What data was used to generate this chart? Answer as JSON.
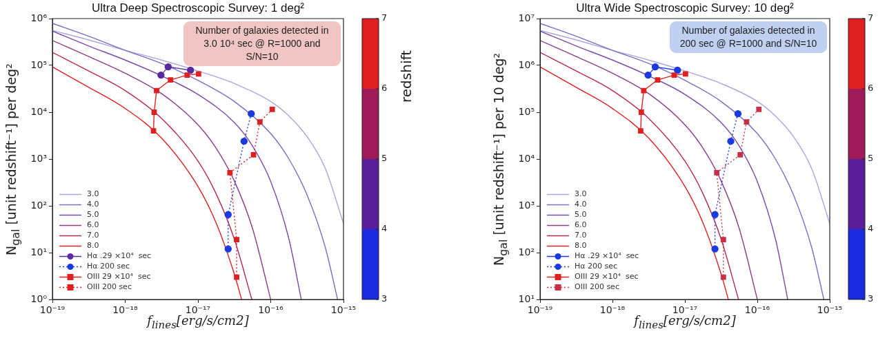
{
  "chart_data": [
    {
      "type": "line",
      "title": "Ultra Deep Spectroscopic Survey: 1 deg²",
      "xlabel": "f$_{lines}$[erg/s/cm2]",
      "ylabel": "N$_{gal}$ [unit redshift⁻¹] per deg²",
      "clabel": "redshift",
      "log": "xy",
      "legend": "bottom left",
      "xlim": [
        1e-19,
        1e-15
      ],
      "ylim": [
        1,
        1000000
      ],
      "xticks": [
        {
          "value": 1e-19,
          "label": "10⁻¹⁹"
        },
        {
          "value": 1e-18,
          "label": "10⁻¹⁸"
        },
        {
          "value": 1e-17,
          "label": "10⁻¹⁷"
        },
        {
          "value": 1e-16,
          "label": "10⁻¹⁶"
        },
        {
          "value": 1e-15,
          "label": "10⁻¹⁵"
        }
      ],
      "yticks": [
        {
          "value": 1,
          "label": "10⁰"
        },
        {
          "value": 10,
          "label": "10¹"
        },
        {
          "value": 100,
          "label": "10²"
        },
        {
          "value": 1000,
          "label": "10³"
        },
        {
          "value": 10000,
          "label": "10⁴"
        },
        {
          "value": 100000,
          "label": "10⁵"
        },
        {
          "value": 1000000,
          "label": "10⁶"
        }
      ],
      "clim": [
        3,
        7
      ],
      "cticks": [
        3,
        4,
        5,
        6,
        7
      ],
      "annotations": [
        "Number of galaxies detected in 3.0 10⁴ sec @ R=1000 and S/N=10"
      ],
      "series": [
        {
          "name": "3.0",
          "color": "#a9a6e0",
          "marker": "none",
          "line_style": "solid",
          "x": [
            1e-19,
            3.16e-19,
            1e-18,
            3.16e-18,
            1e-17,
            3.16e-17,
            1e-16,
            1.78e-16,
            3.16e-16,
            5.62e-16,
            1e-15
          ],
          "values": [
            560000,
            350000,
            210000,
            130000,
            76000,
            41000,
            17000,
            8300,
            3000,
            630,
            42
          ]
        },
        {
          "name": "4.0",
          "color": "#7a6cc8",
          "marker": "none",
          "line_style": "solid",
          "x": [
            1e-19,
            3.16e-19,
            1e-18,
            3.16e-18,
            1e-17,
            3.16e-17,
            1e-16,
            1.78e-16,
            3.16e-16,
            5.62e-16,
            8.3e-16
          ],
          "values": [
            790000,
            420000,
            210000,
            110000,
            48000,
            17000,
            3500,
            1000,
            170,
            13,
            1
          ]
        },
        {
          "name": "5.0",
          "color": "#7b4aa8",
          "marker": "none",
          "line_style": "solid",
          "x": [
            1e-19,
            3.16e-19,
            1e-18,
            3.16e-18,
            1e-17,
            3.16e-17,
            5.62e-17,
            1e-16,
            1.78e-16,
            2.63e-16
          ],
          "values": [
            540000,
            260000,
            130000,
            60000,
            24000,
            6000,
            1900,
            330,
            19.5,
            1
          ]
        },
        {
          "name": "6.0",
          "color": "#8e3a88",
          "marker": "none",
          "line_style": "solid",
          "x": [
            1e-19,
            3.16e-19,
            1e-18,
            3.16e-18,
            1e-17,
            1.78e-17,
            3.16e-17,
            5.62e-17,
            1e-16
          ],
          "values": [
            340000,
            155000,
            68000,
            25000,
            5400,
            1700,
            340,
            33,
            1
          ]
        },
        {
          "name": "7.0",
          "color": "#b8284e",
          "marker": "none",
          "line_style": "solid",
          "x": [
            1e-19,
            3.16e-19,
            1e-18,
            3.16e-18,
            1e-17,
            1.78e-17,
            3.16e-17,
            5.5e-17
          ],
          "values": [
            190000,
            76000,
            29000,
            7400,
            910,
            180,
            19.5,
            1
          ]
        },
        {
          "name": "8.0",
          "color": "#e02020",
          "marker": "none",
          "line_style": "solid",
          "x": [
            1e-19,
            3.16e-19,
            1e-18,
            3.16e-18,
            1e-17,
            1.78e-17,
            3.16e-17,
            3.98e-17
          ],
          "values": [
            93000,
            34000,
            12000,
            2800,
            260,
            43,
            3.5,
            1
          ]
        },
        {
          "name": "Hα .29 ×10⁴  sec",
          "color": "#5a2aa0",
          "marker": "circle",
          "line_style": "solid",
          "x": [
            3.1e-18,
            3.9e-18,
            7.9e-18
          ],
          "values": [
            62000,
            93000,
            79000
          ]
        },
        {
          "name": "Hα 200 sec",
          "color": "#1a3ae0",
          "marker": "circle",
          "line_style": "dotted",
          "x": [
            5.4e-17,
            4.3e-17,
            2.75e-17,
            2.6e-17,
            2.6e-17
          ],
          "values": [
            9300,
            2400,
            null,
            65,
            12
          ]
        },
        {
          "name": "OIII 29 ×10⁴  sec",
          "color": "#e02020",
          "marker": "square",
          "line_style": "solid",
          "x": [
            2.45e-18,
            2.5e-18,
            2.7e-18,
            4.2e-18,
            7.1e-18,
            1.02e-17
          ],
          "values": [
            4000,
            10000,
            29000,
            49000,
            62000,
            66000
          ]
        },
        {
          "name": "OIII 200 sec",
          "color": "#e02020",
          "marker": "square",
          "line_style": "dotted",
          "x": [
            1.05e-16,
            7.1e-17,
            5.8e-17,
            2.75e-17,
            3.4e-17,
            3.4e-17
          ],
          "values": [
            11500,
            6200,
            1230,
            510,
            19,
            3
          ]
        }
      ]
    },
    {
      "type": "line",
      "title": "Ultra Wide Spectroscopic Survey: 10 deg²",
      "xlabel": "f$_{lines}$[erg/s/cm2]",
      "ylabel": "N$_{gal}$ [unit redshift⁻¹] per 10 deg²",
      "log": "xy",
      "legend": "bottom left",
      "xlim": [
        1e-19,
        1e-15
      ],
      "ylim": [
        10,
        10000000
      ],
      "xticks": [
        {
          "value": 1e-19,
          "label": "10⁻¹⁹"
        },
        {
          "value": 1e-18,
          "label": "10⁻¹⁸"
        },
        {
          "value": 1e-17,
          "label": "10⁻¹⁷"
        },
        {
          "value": 1e-16,
          "label": "10⁻¹⁶"
        },
        {
          "value": 1e-15,
          "label": "10⁻¹⁵"
        }
      ],
      "yticks": [
        {
          "value": 10,
          "label": "10¹"
        },
        {
          "value": 100,
          "label": "10²"
        },
        {
          "value": 1000,
          "label": "10³"
        },
        {
          "value": 10000,
          "label": "10⁴"
        },
        {
          "value": 100000,
          "label": "10⁵"
        },
        {
          "value": 1000000,
          "label": "10⁶"
        },
        {
          "value": 10000000,
          "label": "10⁷"
        }
      ],
      "clim": [
        3,
        7
      ],
      "cticks": [
        3,
        4,
        5,
        6,
        7
      ],
      "annotations": [
        "Number of galaxies detected in 200 sec @ R=1000 and S/N=10"
      ],
      "series": [
        {
          "name": "3.0",
          "color": "#a9a6e0",
          "marker": "none",
          "line_style": "solid",
          "x": [
            1e-19,
            3.16e-19,
            1e-18,
            3.16e-18,
            1e-17,
            3.16e-17,
            1e-16,
            1.78e-16,
            3.16e-16,
            5.62e-16,
            1e-15
          ],
          "values": [
            5600000,
            3500000,
            2100000,
            1300000,
            760000,
            410000,
            170000,
            83000,
            30000,
            6300,
            420
          ]
        },
        {
          "name": "4.0",
          "color": "#7a6cc8",
          "marker": "none",
          "line_style": "solid",
          "x": [
            1e-19,
            3.16e-19,
            1e-18,
            3.16e-18,
            1e-17,
            3.16e-17,
            1e-16,
            1.78e-16,
            3.16e-16,
            5.62e-16,
            8.3e-16
          ],
          "values": [
            7900000,
            4200000,
            2100000,
            1100000,
            480000,
            170000,
            35000,
            10000,
            1700,
            130,
            10
          ]
        },
        {
          "name": "5.0",
          "color": "#7b4aa8",
          "marker": "none",
          "line_style": "solid",
          "x": [
            1e-19,
            3.16e-19,
            1e-18,
            3.16e-18,
            1e-17,
            3.16e-17,
            5.62e-17,
            1e-16,
            1.78e-16,
            2.63e-16
          ],
          "values": [
            5400000,
            2600000,
            1300000,
            600000,
            240000,
            60000,
            19000,
            3300,
            195,
            10
          ]
        },
        {
          "name": "6.0",
          "color": "#8e3a88",
          "marker": "none",
          "line_style": "solid",
          "x": [
            1e-19,
            3.16e-19,
            1e-18,
            3.16e-18,
            1e-17,
            1.78e-17,
            3.16e-17,
            5.62e-17,
            1e-16
          ],
          "values": [
            3400000,
            1550000,
            680000,
            250000,
            54000,
            17000,
            3400,
            330,
            10
          ]
        },
        {
          "name": "7.0",
          "color": "#b8284e",
          "marker": "none",
          "line_style": "solid",
          "x": [
            1e-19,
            3.16e-19,
            1e-18,
            3.16e-18,
            1e-17,
            1.78e-17,
            3.16e-17,
            5.5e-17
          ],
          "values": [
            1900000,
            760000,
            290000,
            74000,
            9100,
            1800,
            195,
            10
          ]
        },
        {
          "name": "8.0",
          "color": "#e02020",
          "marker": "none",
          "line_style": "solid",
          "x": [
            1e-19,
            3.16e-19,
            1e-18,
            3.16e-18,
            1e-17,
            1.78e-17,
            3.16e-17,
            3.98e-17
          ],
          "values": [
            930000,
            340000,
            120000,
            28000,
            2600,
            430,
            35,
            10
          ]
        },
        {
          "name": "Hα .29 ×10⁴  sec",
          "color": "#1a3ae0",
          "marker": "circle",
          "line_style": "solid",
          "x": [
            3.1e-18,
            3.9e-18,
            7.9e-18
          ],
          "values": [
            620000,
            930000,
            790000
          ]
        },
        {
          "name": "Hα 200 sec",
          "color": "#1a3ae0",
          "marker": "circle",
          "line_style": "dotted",
          "x": [
            5.4e-17,
            4.3e-17,
            2.75e-17,
            2.6e-17,
            2.6e-17
          ],
          "values": [
            93000,
            24000,
            null,
            650,
            120
          ]
        },
        {
          "name": "OIII 29 ×10⁴  sec",
          "color": "#e02020",
          "marker": "square",
          "line_style": "solid",
          "x": [
            2.45e-18,
            2.5e-18,
            2.7e-18,
            4.2e-18,
            7.1e-18,
            1.02e-17
          ],
          "values": [
            40000,
            100000,
            290000,
            490000,
            620000,
            660000
          ]
        },
        {
          "name": "OIII 200 sec",
          "color": "#c8304a",
          "marker": "square",
          "line_style": "dotted",
          "x": [
            1.05e-16,
            7.1e-17,
            5.8e-17,
            2.75e-17,
            3.4e-17,
            3.4e-17
          ],
          "values": [
            115000,
            62000,
            12300,
            5100,
            190,
            30
          ]
        }
      ]
    }
  ]
}
